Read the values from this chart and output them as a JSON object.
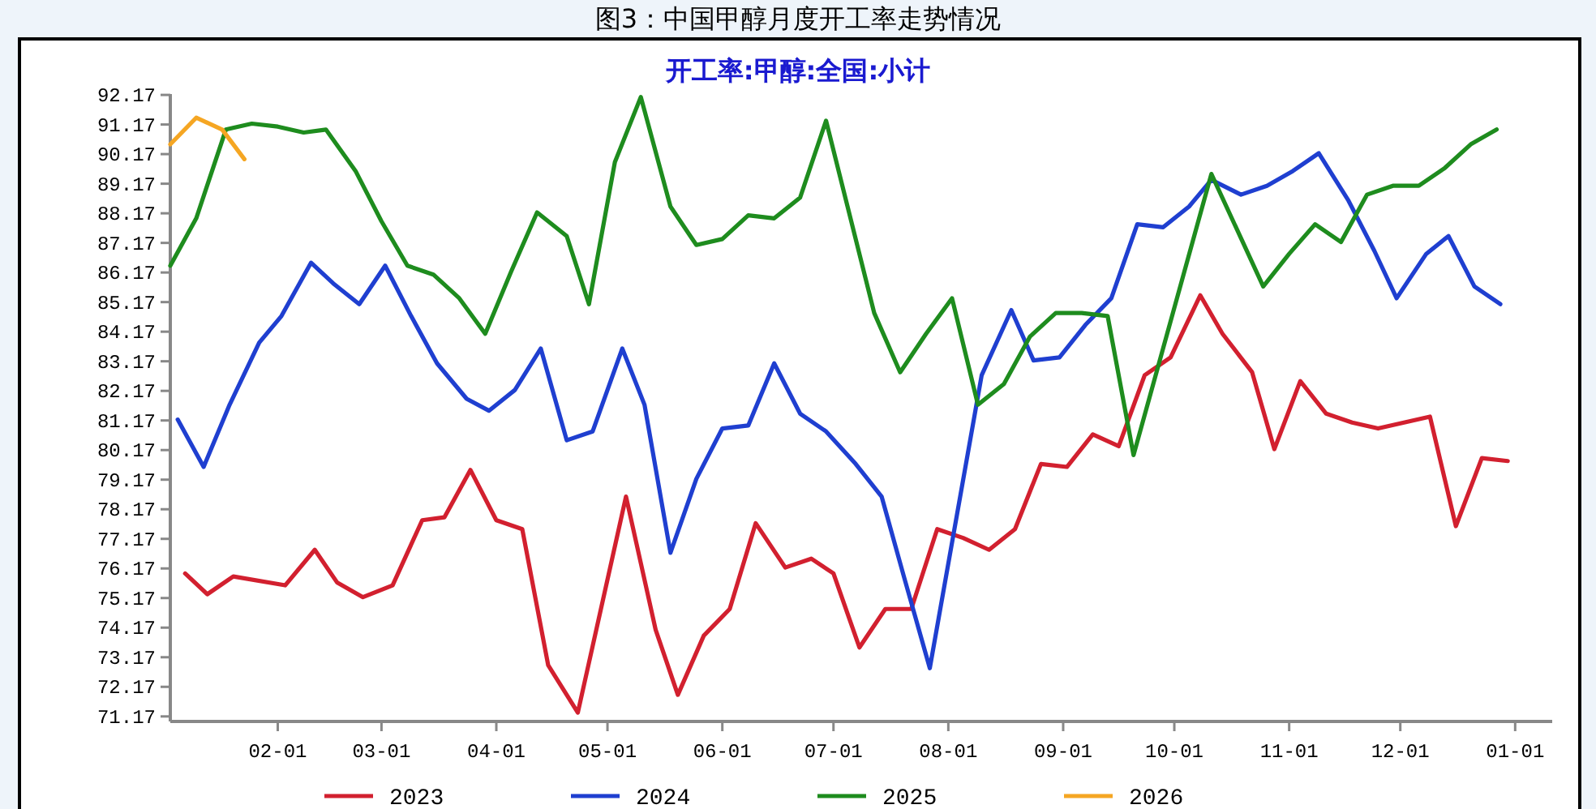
{
  "chart_data": {
    "type": "line",
    "title": "图3：中国甲醇月度开工率走势情况",
    "subtitle": "开工率:甲醇:全国:小计",
    "xlim": [
      "2025-01-03",
      "2026-01-11"
    ],
    "ylim": [
      71.0,
      92.2
    ],
    "xticks": [
      {
        "value": "2025-02-01",
        "label": "02-01"
      },
      {
        "value": "2025-03-01",
        "label": "03-01"
      },
      {
        "value": "2025-04-01",
        "label": "04-01"
      },
      {
        "value": "2025-05-01",
        "label": "05-01"
      },
      {
        "value": "2025-06-01",
        "label": "06-01"
      },
      {
        "value": "2025-07-01",
        "label": "07-01"
      },
      {
        "value": "2025-08-01",
        "label": "08-01"
      },
      {
        "value": "2025-09-01",
        "label": "09-01"
      },
      {
        "value": "2025-10-01",
        "label": "10-01"
      },
      {
        "value": "2025-11-01",
        "label": "11-01"
      },
      {
        "value": "2025-12-01",
        "label": "12-01"
      },
      {
        "value": "2026-01-01",
        "label": "01-01"
      }
    ],
    "yticks": [
      {
        "value": 71.17,
        "label": "71.17"
      },
      {
        "value": 72.17,
        "label": "72.17"
      },
      {
        "value": 73.17,
        "label": "73.17"
      },
      {
        "value": 74.17,
        "label": "74.17"
      },
      {
        "value": 75.17,
        "label": "75.17"
      },
      {
        "value": 76.17,
        "label": "76.17"
      },
      {
        "value": 77.17,
        "label": "77.17"
      },
      {
        "value": 78.17,
        "label": "78.17"
      },
      {
        "value": 79.17,
        "label": "79.17"
      },
      {
        "value": 80.17,
        "label": "80.17"
      },
      {
        "value": 81.17,
        "label": "81.17"
      },
      {
        "value": 82.17,
        "label": "82.17"
      },
      {
        "value": 83.17,
        "label": "83.17"
      },
      {
        "value": 84.17,
        "label": "84.17"
      },
      {
        "value": 85.17,
        "label": "85.17"
      },
      {
        "value": 86.17,
        "label": "86.17"
      },
      {
        "value": 87.17,
        "label": "87.17"
      },
      {
        "value": 88.17,
        "label": "88.17"
      },
      {
        "value": 89.17,
        "label": "89.17"
      },
      {
        "value": 90.17,
        "label": "90.17"
      },
      {
        "value": 91.17,
        "label": "91.17"
      },
      {
        "value": 92.17,
        "label": "92.17"
      }
    ],
    "legend": "bottom",
    "grid": false,
    "line_style": "solid",
    "series": [
      {
        "name": "2023",
        "color": "#d2202f",
        "x": [
          "2025-01-07",
          "2025-01-13",
          "2025-01-20",
          "2025-02-03",
          "2025-02-11",
          "2025-02-17",
          "2025-02-24",
          "2025-03-04",
          "2025-03-12",
          "2025-03-18",
          "2025-03-25",
          "2025-04-01",
          "2025-04-08",
          "2025-04-15",
          "2025-04-23",
          "2025-05-06",
          "2025-05-14",
          "2025-05-20",
          "2025-05-27",
          "2025-06-03",
          "2025-06-10",
          "2025-06-18",
          "2025-06-25",
          "2025-07-01",
          "2025-07-08",
          "2025-07-15",
          "2025-07-22",
          "2025-07-29",
          "2025-08-05",
          "2025-08-12",
          "2025-08-19",
          "2025-08-26",
          "2025-09-02",
          "2025-09-09",
          "2025-09-16",
          "2025-09-23",
          "2025-09-30",
          "2025-10-08",
          "2025-10-14",
          "2025-10-22",
          "2025-10-28",
          "2025-11-04",
          "2025-11-11",
          "2025-11-18",
          "2025-11-25",
          "2025-12-02",
          "2025-12-09",
          "2025-12-16",
          "2025-12-23",
          "2025-12-30"
        ],
        "values": [
          76.0,
          75.3,
          75.9,
          75.6,
          76.8,
          75.7,
          75.2,
          75.6,
          77.8,
          77.9,
          79.5,
          77.8,
          77.5,
          72.9,
          71.3,
          78.6,
          74.1,
          71.9,
          73.9,
          74.8,
          77.7,
          76.2,
          76.5,
          76.0,
          73.5,
          74.8,
          74.8,
          77.5,
          77.2,
          76.8,
          77.5,
          79.7,
          79.6,
          80.7,
          80.3,
          82.7,
          83.3,
          85.4,
          84.1,
          82.8,
          80.2,
          82.5,
          81.4,
          81.1,
          80.9,
          81.1,
          81.3,
          77.6,
          79.9,
          79.8
        ]
      },
      {
        "name": "2024",
        "color": "#1f3fd0",
        "x": [
          "2025-01-05",
          "2025-01-12",
          "2025-01-19",
          "2025-01-27",
          "2025-02-02",
          "2025-02-10",
          "2025-02-16",
          "2025-02-23",
          "2025-03-02",
          "2025-03-09",
          "2025-03-16",
          "2025-03-24",
          "2025-03-30",
          "2025-04-06",
          "2025-04-13",
          "2025-04-20",
          "2025-04-27",
          "2025-05-05",
          "2025-05-11",
          "2025-05-18",
          "2025-05-25",
          "2025-06-01",
          "2025-06-08",
          "2025-06-15",
          "2025-06-22",
          "2025-06-29",
          "2025-07-07",
          "2025-07-14",
          "2025-07-20",
          "2025-07-27",
          "2025-08-10",
          "2025-08-18",
          "2025-08-24",
          "2025-08-31",
          "2025-09-07",
          "2025-09-14",
          "2025-09-21",
          "2025-09-28",
          "2025-10-05",
          "2025-10-11",
          "2025-10-19",
          "2025-10-26",
          "2025-11-02",
          "2025-11-09",
          "2025-11-17",
          "2025-11-24",
          "2025-11-30",
          "2025-12-08",
          "2025-12-14",
          "2025-12-21",
          "2025-12-28"
        ],
        "values": [
          81.2,
          79.6,
          81.7,
          83.8,
          84.7,
          86.5,
          85.8,
          85.1,
          86.4,
          84.7,
          83.1,
          81.9,
          81.5,
          82.2,
          83.6,
          80.5,
          80.8,
          83.6,
          81.7,
          76.7,
          79.2,
          80.9,
          81.0,
          83.1,
          81.4,
          80.8,
          79.7,
          78.6,
          75.9,
          72.8,
          82.7,
          84.9,
          83.2,
          83.3,
          84.4,
          85.3,
          87.8,
          87.7,
          88.4,
          89.3,
          88.8,
          89.1,
          89.6,
          90.2,
          88.6,
          86.9,
          85.3,
          86.8,
          87.4,
          85.7,
          85.1
        ]
      },
      {
        "name": "2025",
        "color": "#1e8c1e",
        "x": [
          "2025-01-03",
          "2025-01-10",
          "2025-01-18",
          "2025-01-25",
          "2025-02-01",
          "2025-02-08",
          "2025-02-14",
          "2025-02-22",
          "2025-03-01",
          "2025-03-08",
          "2025-03-15",
          "2025-03-22",
          "2025-03-29",
          "2025-04-05",
          "2025-04-12",
          "2025-04-20",
          "2025-04-26",
          "2025-05-03",
          "2025-05-10",
          "2025-05-18",
          "2025-05-25",
          "2025-06-01",
          "2025-06-08",
          "2025-06-15",
          "2025-06-22",
          "2025-06-29",
          "2025-07-12",
          "2025-07-19",
          "2025-07-26",
          "2025-08-02",
          "2025-08-09",
          "2025-08-16",
          "2025-08-23",
          "2025-08-30",
          "2025-09-06",
          "2025-09-13",
          "2025-09-20",
          "2025-10-11",
          "2025-10-18",
          "2025-10-25",
          "2025-11-01",
          "2025-11-08",
          "2025-11-15",
          "2025-11-22",
          "2025-11-29",
          "2025-12-06",
          "2025-12-13",
          "2025-12-20",
          "2025-12-27"
        ],
        "values": [
          86.4,
          88.0,
          91.0,
          91.2,
          91.1,
          90.9,
          91.0,
          89.6,
          87.9,
          86.4,
          86.1,
          85.3,
          84.1,
          86.2,
          88.2,
          87.4,
          85.1,
          89.9,
          92.1,
          88.4,
          87.1,
          87.3,
          88.1,
          88.0,
          88.7,
          91.3,
          84.8,
          82.8,
          84.1,
          85.3,
          81.7,
          82.4,
          84.0,
          84.8,
          84.8,
          84.7,
          80.0,
          89.5,
          87.6,
          85.7,
          86.8,
          87.8,
          87.2,
          88.8,
          89.1,
          89.1,
          89.7,
          90.5,
          91.0
        ]
      },
      {
        "name": "2026",
        "color": "#f5a623",
        "x": [
          "2025-01-03",
          "2025-01-10",
          "2025-01-17",
          "2025-01-23"
        ],
        "values": [
          90.5,
          91.4,
          91.0,
          90.0
        ]
      }
    ]
  }
}
